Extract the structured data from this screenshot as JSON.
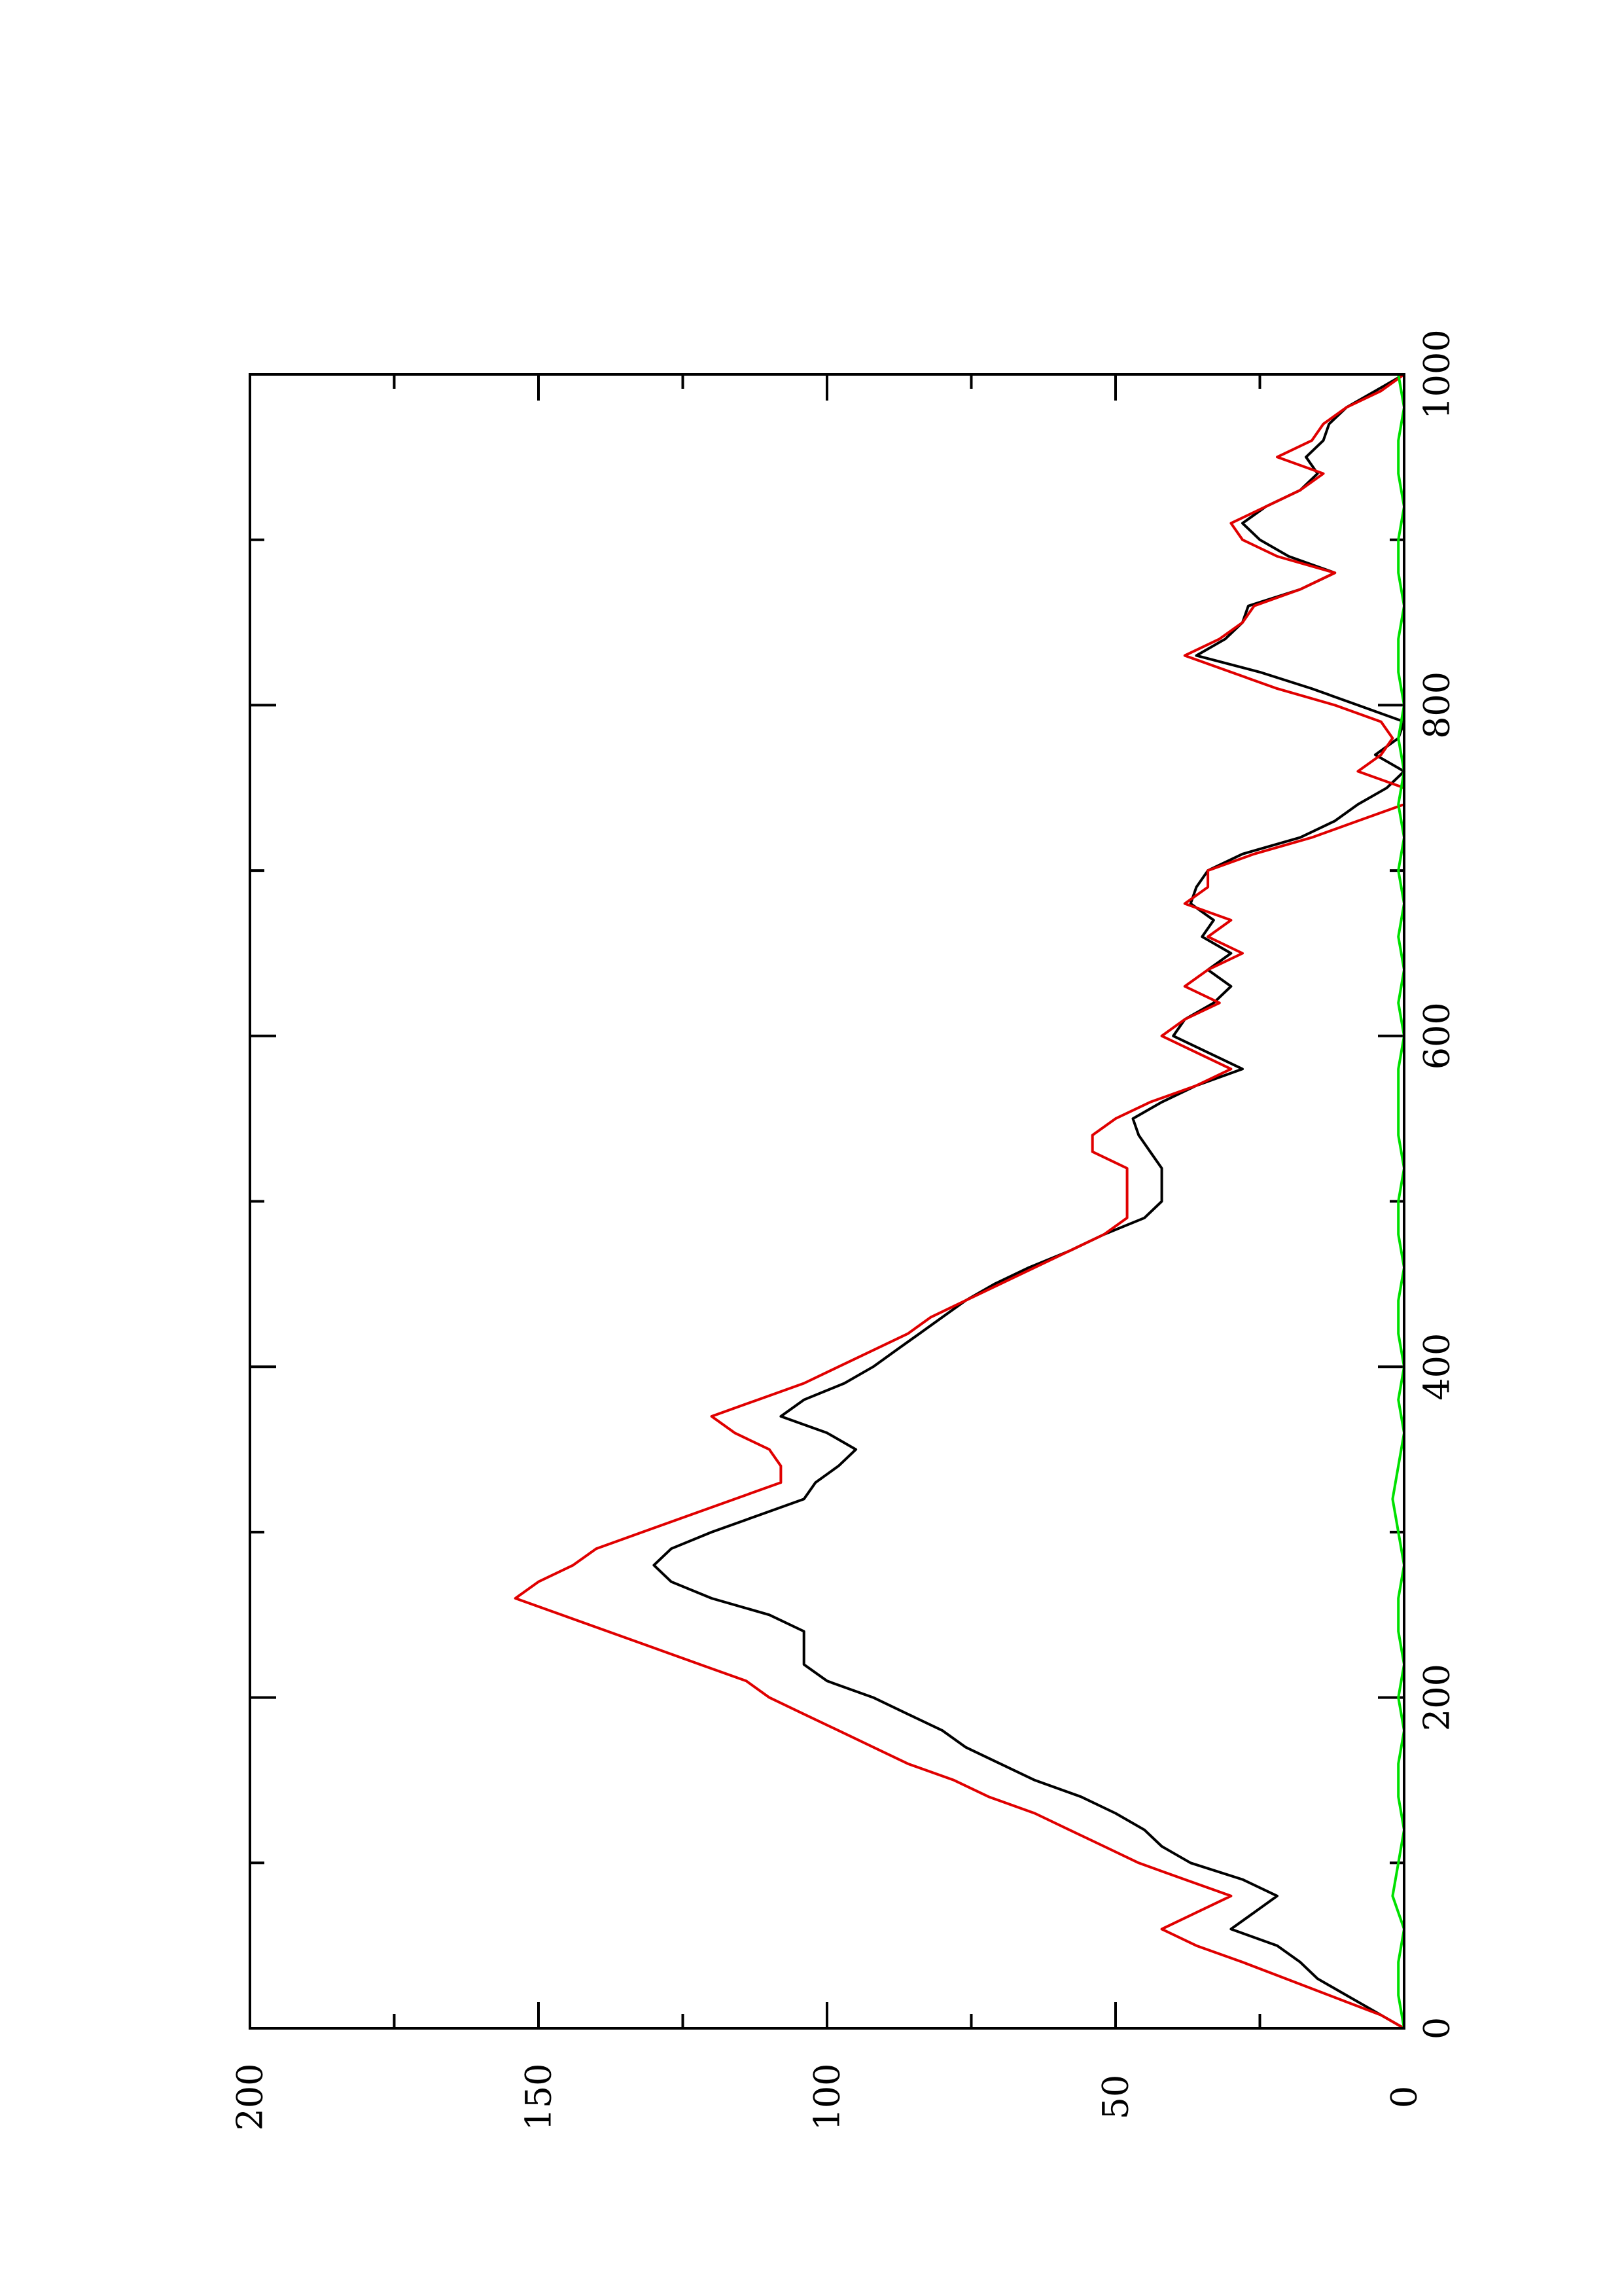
{
  "chart_data": {
    "type": "line",
    "orientation": "rotated-90-ccw",
    "title": "",
    "xlabel": "",
    "ylabel": "",
    "xlim": [
      0,
      1000
    ],
    "ylim": [
      0,
      200
    ],
    "x_ticks": [
      0,
      200,
      400,
      600,
      800,
      1000
    ],
    "x_minor_ticks": [
      100,
      300,
      500,
      700,
      900
    ],
    "y_ticks": [
      0,
      50,
      100,
      150,
      200
    ],
    "y_minor_ticks": [
      25,
      75,
      125,
      175
    ],
    "grid": false,
    "legend": "none",
    "series": [
      {
        "color": "#000000",
        "points": [
          [
            0,
            0
          ],
          [
            10,
            5
          ],
          [
            20,
            10
          ],
          [
            30,
            15
          ],
          [
            40,
            18
          ],
          [
            50,
            22
          ],
          [
            60,
            30
          ],
          [
            70,
            26
          ],
          [
            80,
            22
          ],
          [
            90,
            28
          ],
          [
            100,
            37
          ],
          [
            110,
            42
          ],
          [
            120,
            45
          ],
          [
            130,
            50
          ],
          [
            140,
            56
          ],
          [
            150,
            64
          ],
          [
            160,
            70
          ],
          [
            170,
            76
          ],
          [
            180,
            80
          ],
          [
            190,
            86
          ],
          [
            200,
            92
          ],
          [
            210,
            100
          ],
          [
            220,
            104
          ],
          [
            240,
            104
          ],
          [
            250,
            110
          ],
          [
            260,
            120
          ],
          [
            270,
            127
          ],
          [
            280,
            130
          ],
          [
            290,
            127
          ],
          [
            300,
            120
          ],
          [
            310,
            112
          ],
          [
            320,
            104
          ],
          [
            330,
            102
          ],
          [
            340,
            98
          ],
          [
            350,
            95
          ],
          [
            360,
            100
          ],
          [
            370,
            108
          ],
          [
            380,
            104
          ],
          [
            390,
            97
          ],
          [
            400,
            92
          ],
          [
            410,
            88
          ],
          [
            420,
            84
          ],
          [
            430,
            80
          ],
          [
            440,
            76
          ],
          [
            450,
            71
          ],
          [
            460,
            65
          ],
          [
            470,
            58
          ],
          [
            480,
            52
          ],
          [
            490,
            45
          ],
          [
            500,
            42
          ],
          [
            520,
            42
          ],
          [
            530,
            44
          ],
          [
            540,
            46
          ],
          [
            550,
            47
          ],
          [
            560,
            42
          ],
          [
            570,
            36
          ],
          [
            580,
            28
          ],
          [
            590,
            34
          ],
          [
            600,
            40
          ],
          [
            610,
            38
          ],
          [
            620,
            33
          ],
          [
            630,
            30
          ],
          [
            640,
            34
          ],
          [
            650,
            30
          ],
          [
            660,
            35
          ],
          [
            670,
            33
          ],
          [
            680,
            37
          ],
          [
            690,
            36
          ],
          [
            700,
            34
          ],
          [
            710,
            28
          ],
          [
            720,
            18
          ],
          [
            730,
            12
          ],
          [
            740,
            8
          ],
          [
            750,
            3
          ],
          [
            760,
            0
          ],
          [
            770,
            5
          ],
          [
            780,
            1
          ],
          [
            790,
            0
          ],
          [
            800,
            8
          ],
          [
            810,
            16
          ],
          [
            820,
            25
          ],
          [
            830,
            36
          ],
          [
            840,
            31
          ],
          [
            850,
            28
          ],
          [
            860,
            27
          ],
          [
            870,
            18
          ],
          [
            880,
            12
          ],
          [
            890,
            20
          ],
          [
            900,
            25
          ],
          [
            910,
            28
          ],
          [
            920,
            24
          ],
          [
            930,
            18
          ],
          [
            940,
            15
          ],
          [
            950,
            17
          ],
          [
            960,
            14
          ],
          [
            970,
            13
          ],
          [
            980,
            10
          ],
          [
            990,
            5
          ],
          [
            1000,
            0
          ]
        ]
      },
      {
        "color": "#e00000",
        "points": [
          [
            0,
            0
          ],
          [
            8,
            4
          ],
          [
            16,
            10
          ],
          [
            24,
            16
          ],
          [
            32,
            22
          ],
          [
            40,
            28
          ],
          [
            50,
            36
          ],
          [
            60,
            42
          ],
          [
            70,
            36
          ],
          [
            80,
            30
          ],
          [
            90,
            38
          ],
          [
            100,
            46
          ],
          [
            110,
            52
          ],
          [
            120,
            58
          ],
          [
            130,
            64
          ],
          [
            140,
            72
          ],
          [
            150,
            78
          ],
          [
            160,
            86
          ],
          [
            170,
            92
          ],
          [
            180,
            98
          ],
          [
            190,
            104
          ],
          [
            200,
            110
          ],
          [
            210,
            114
          ],
          [
            220,
            122
          ],
          [
            230,
            130
          ],
          [
            240,
            138
          ],
          [
            250,
            146
          ],
          [
            260,
            154
          ],
          [
            270,
            150
          ],
          [
            280,
            144
          ],
          [
            290,
            140
          ],
          [
            300,
            132
          ],
          [
            310,
            124
          ],
          [
            320,
            116
          ],
          [
            330,
            108
          ],
          [
            340,
            108
          ],
          [
            350,
            110
          ],
          [
            360,
            116
          ],
          [
            370,
            120
          ],
          [
            380,
            112
          ],
          [
            390,
            104
          ],
          [
            400,
            98
          ],
          [
            410,
            92
          ],
          [
            420,
            86
          ],
          [
            430,
            82
          ],
          [
            440,
            76
          ],
          [
            450,
            70
          ],
          [
            460,
            64
          ],
          [
            470,
            58
          ],
          [
            480,
            52
          ],
          [
            490,
            48
          ],
          [
            510,
            48
          ],
          [
            520,
            48
          ],
          [
            530,
            54
          ],
          [
            540,
            54
          ],
          [
            550,
            50
          ],
          [
            560,
            44
          ],
          [
            570,
            36
          ],
          [
            580,
            30
          ],
          [
            590,
            36
          ],
          [
            600,
            42
          ],
          [
            610,
            38
          ],
          [
            620,
            32
          ],
          [
            630,
            38
          ],
          [
            640,
            34
          ],
          [
            650,
            28
          ],
          [
            660,
            34
          ],
          [
            670,
            30
          ],
          [
            680,
            38
          ],
          [
            690,
            34
          ],
          [
            700,
            34
          ],
          [
            710,
            26
          ],
          [
            720,
            16
          ],
          [
            730,
            8
          ],
          [
            740,
            0
          ],
          [
            750,
            0
          ],
          [
            760,
            8
          ],
          [
            770,
            4
          ],
          [
            780,
            2
          ],
          [
            790,
            4
          ],
          [
            800,
            12
          ],
          [
            810,
            22
          ],
          [
            820,
            30
          ],
          [
            830,
            38
          ],
          [
            840,
            32
          ],
          [
            850,
            28
          ],
          [
            860,
            26
          ],
          [
            870,
            18
          ],
          [
            880,
            12
          ],
          [
            890,
            22
          ],
          [
            900,
            28
          ],
          [
            910,
            30
          ],
          [
            920,
            24
          ],
          [
            930,
            18
          ],
          [
            940,
            14
          ],
          [
            950,
            22
          ],
          [
            960,
            16
          ],
          [
            970,
            14
          ],
          [
            980,
            10
          ],
          [
            990,
            4
          ],
          [
            1000,
            0
          ]
        ]
      },
      {
        "color": "#00e000",
        "points": [
          [
            0,
            0
          ],
          [
            20,
            1
          ],
          [
            40,
            1
          ],
          [
            60,
            0
          ],
          [
            80,
            2
          ],
          [
            100,
            1
          ],
          [
            120,
            0
          ],
          [
            140,
            1
          ],
          [
            160,
            1
          ],
          [
            180,
            0
          ],
          [
            200,
            1
          ],
          [
            220,
            0
          ],
          [
            240,
            1
          ],
          [
            260,
            1
          ],
          [
            280,
            0
          ],
          [
            300,
            1
          ],
          [
            320,
            2
          ],
          [
            340,
            1
          ],
          [
            360,
            0
          ],
          [
            380,
            1
          ],
          [
            400,
            0
          ],
          [
            420,
            1
          ],
          [
            440,
            1
          ],
          [
            460,
            0
          ],
          [
            480,
            1
          ],
          [
            500,
            1
          ],
          [
            520,
            0
          ],
          [
            540,
            1
          ],
          [
            560,
            1
          ],
          [
            580,
            1
          ],
          [
            600,
            0
          ],
          [
            620,
            1
          ],
          [
            640,
            0
          ],
          [
            660,
            1
          ],
          [
            680,
            0
          ],
          [
            700,
            1
          ],
          [
            720,
            0
          ],
          [
            740,
            1
          ],
          [
            760,
            0
          ],
          [
            780,
            1
          ],
          [
            800,
            0
          ],
          [
            820,
            1
          ],
          [
            840,
            1
          ],
          [
            860,
            0
          ],
          [
            880,
            1
          ],
          [
            900,
            1
          ],
          [
            920,
            0
          ],
          [
            940,
            1
          ],
          [
            960,
            1
          ],
          [
            980,
            0
          ],
          [
            1000,
            1
          ]
        ]
      }
    ]
  }
}
